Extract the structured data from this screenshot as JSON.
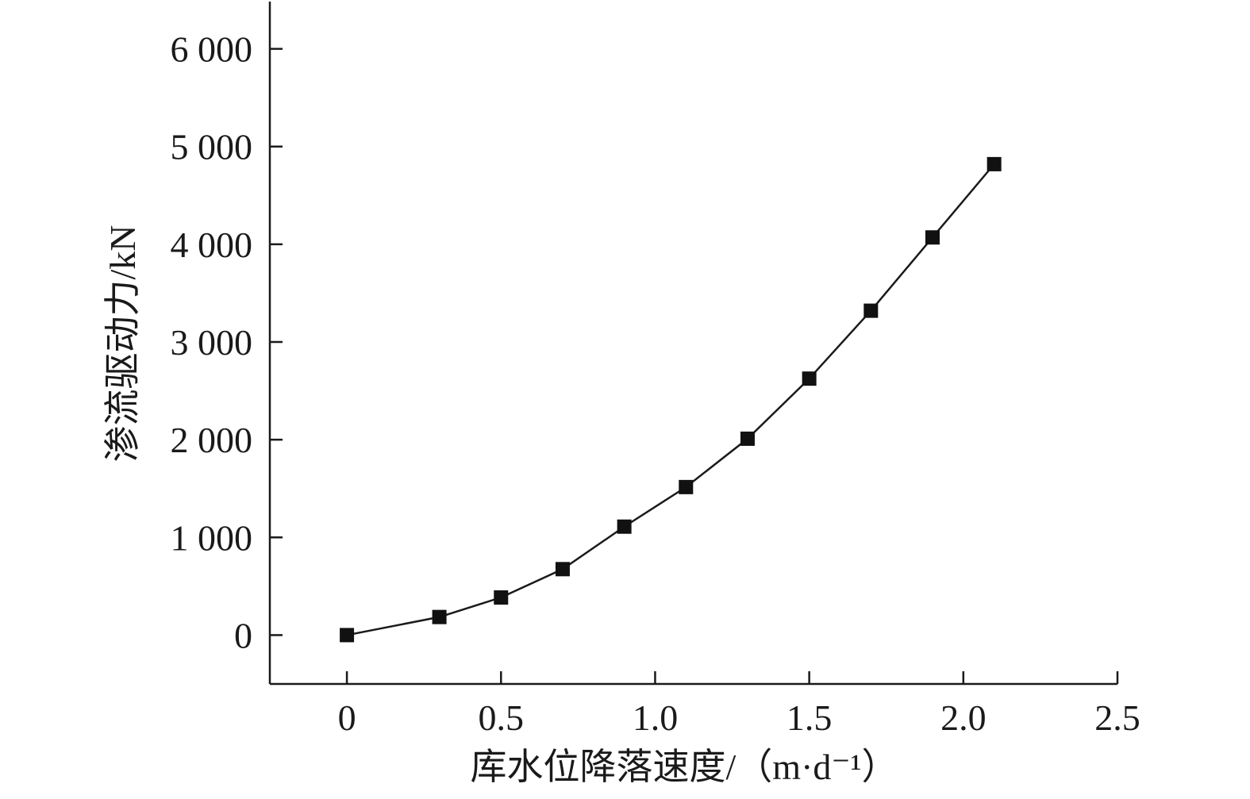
{
  "chart_data": {
    "type": "line",
    "title": "",
    "xlabel": "库水位降落速度/（m·d⁻¹）",
    "ylabel": "渗流驱动力/kN",
    "xlim": [
      -0.25,
      2.5
    ],
    "ylim": [
      -500,
      6500
    ],
    "x_ticks": [
      0,
      0.5,
      1.0,
      1.5,
      2.0,
      2.5
    ],
    "x_tick_labels": [
      "0",
      "0.5",
      "1.0",
      "1.5",
      "2.0",
      "2.5"
    ],
    "y_ticks": [
      0,
      1000,
      2000,
      3000,
      4000,
      5000,
      6000
    ],
    "y_tick_labels": [
      "0",
      "1 000",
      "2 000",
      "3 000",
      "4 000",
      "5 000",
      "6 000"
    ],
    "grid": false,
    "legend": "none",
    "series": [
      {
        "marker": "square",
        "color": "#111111",
        "x": [
          0,
          0.3,
          0.5,
          0.7,
          0.9,
          1.1,
          1.3,
          1.5,
          1.7,
          1.9,
          2.1
        ],
        "y": [
          0,
          185,
          385,
          675,
          1110,
          1515,
          2010,
          2625,
          3320,
          4070,
          4820
        ]
      }
    ]
  }
}
